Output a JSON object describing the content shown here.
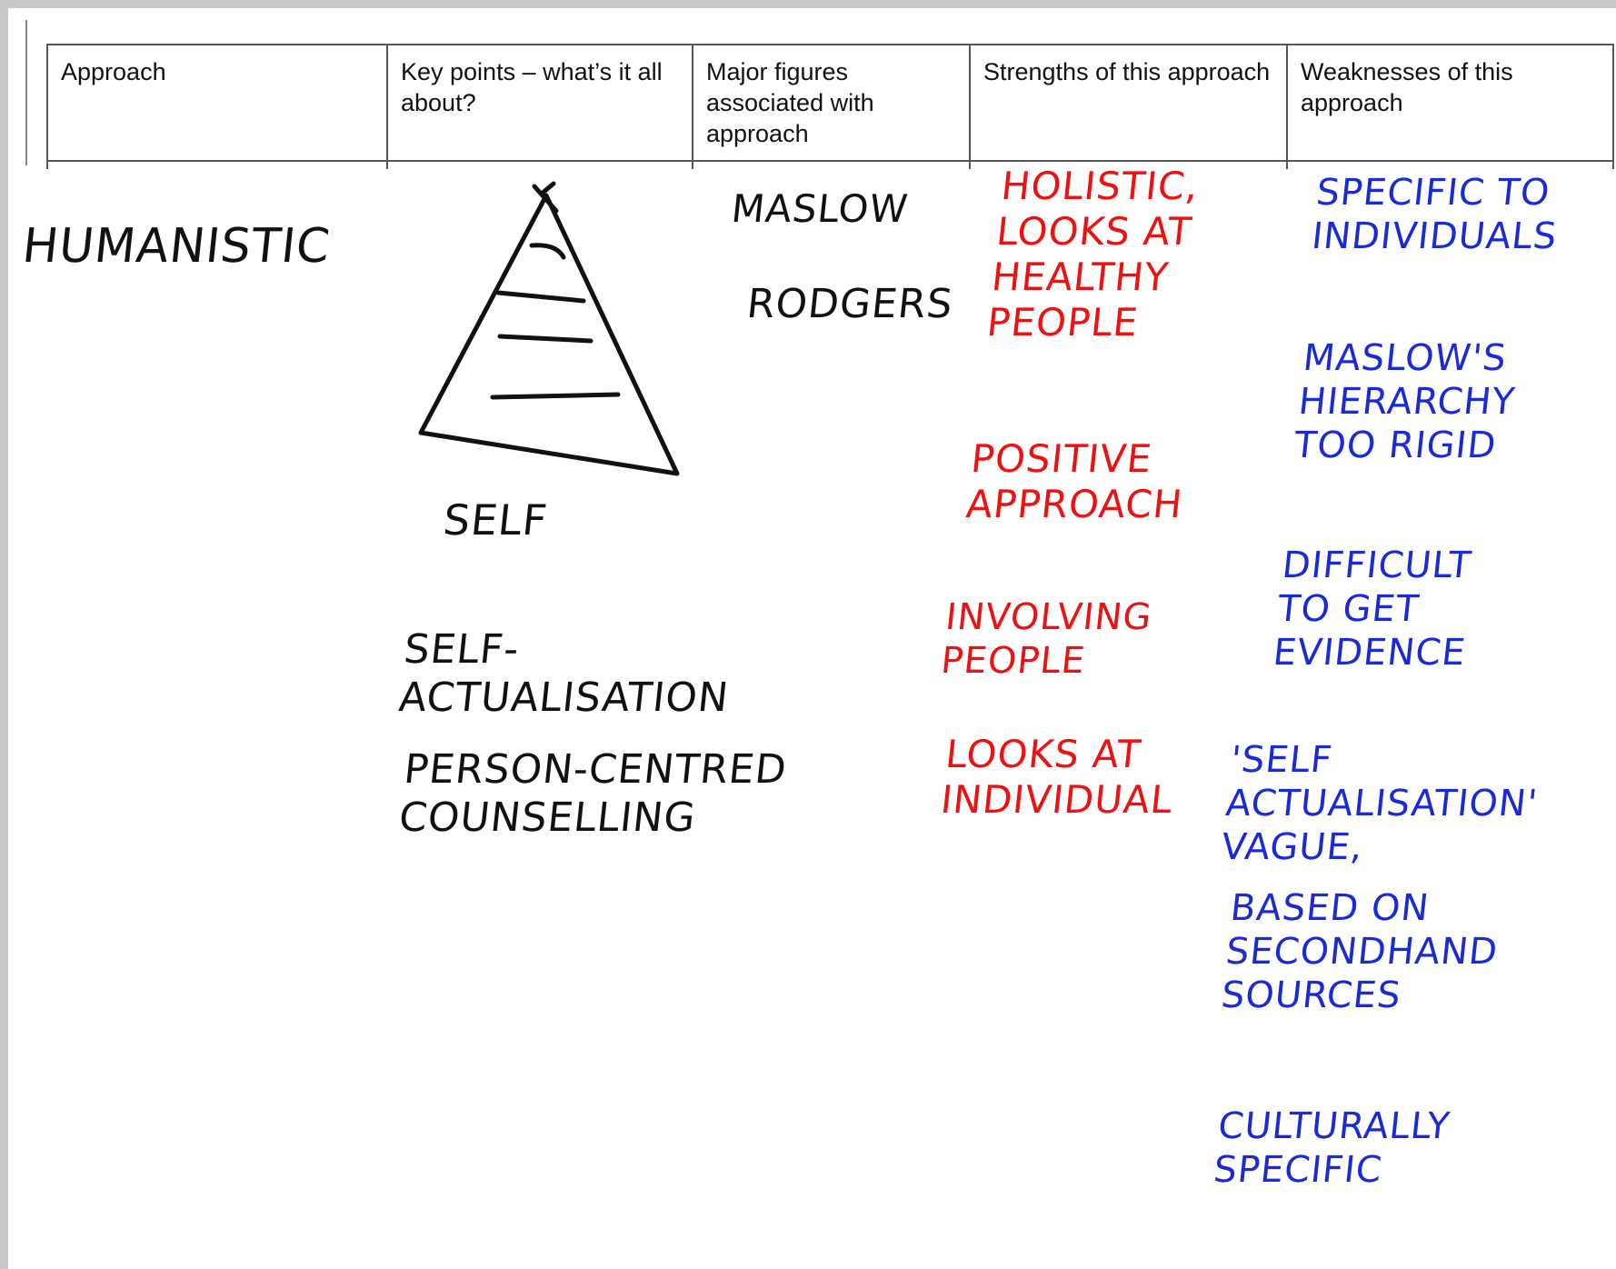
{
  "table": {
    "headers": [
      "Approach",
      "Key points – what’s it all about?",
      "Major figures associated with approach",
      "Strengths of this approach",
      "Weaknesses of this approach"
    ]
  },
  "columns": [
    {
      "notes": [
        {
          "lines": [
            "HUMANISTIC"
          ]
        }
      ]
    },
    {
      "notes": [
        {
          "lines": [
            "SELF"
          ]
        },
        {
          "lines": [
            "SELF-",
            "ACTUALISATION"
          ]
        },
        {
          "lines": [
            "PERSON-CENTRED",
            "COUNSELLING"
          ]
        }
      ]
    },
    {
      "notes": [
        {
          "lines": [
            "MASLOW"
          ]
        },
        {
          "lines": [
            "RODGERS"
          ]
        }
      ]
    },
    {
      "notes": [
        {
          "lines": [
            "HOLISTIC,",
            "LOOKS AT",
            "HEALTHY",
            "PEOPLE"
          ]
        },
        {
          "lines": [
            "POSITIVE",
            "APPROACH"
          ]
        },
        {
          "lines": [
            "INVOLVING",
            "PEOPLE"
          ]
        },
        {
          "lines": [
            "LOOKS AT",
            "INDIVIDUAL"
          ]
        }
      ]
    },
    {
      "notes": [
        {
          "lines": [
            "SPECIFIC TO",
            "INDIVIDUALS"
          ]
        },
        {
          "lines": [
            "MASLOW'S",
            "HIERARCHY",
            "TOO RIGID"
          ]
        },
        {
          "lines": [
            "DIFFICULT",
            "TO GET",
            "EVIDENCE"
          ]
        },
        {
          "lines": [
            "'SELF",
            "ACTUALISATION'",
            "VAGUE,"
          ]
        },
        {
          "lines": [
            "BASED ON",
            "SECONDHAND",
            "SOURCES"
          ]
        },
        {
          "lines": [
            "CULTURALLY",
            "SPECIFIC"
          ]
        }
      ]
    }
  ]
}
